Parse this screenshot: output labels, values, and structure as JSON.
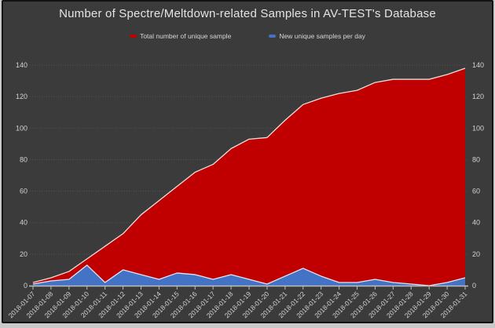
{
  "title": "Number of Spectre/Meltdown-related Samples in AV-TEST's Database",
  "legend": [
    {
      "label": "Total number of unique sample",
      "color": "#c00000"
    },
    {
      "label": "New unique samples per day",
      "color": "#4472c4"
    }
  ],
  "chart_data": {
    "type": "area",
    "title": "Number of Spectre/Meltdown-related Samples in AV-TEST's Database",
    "xlabel": "",
    "ylabel": "",
    "x": [
      "2018-01-07",
      "2018-01-08",
      "2018-01-09",
      "2018-01-10",
      "2018-01-11",
      "2018-01-12",
      "2018-01-13",
      "2018-01-14",
      "2018-01-15",
      "2018-01-16",
      "2018-01-17",
      "2018-01-18",
      "2018-01-19",
      "2018-01-20",
      "2018-01-21",
      "2018-01-22",
      "2018-01-23",
      "2018-01-24",
      "2018-01-25",
      "2018-01-26",
      "2018-01-27",
      "2018-01-28",
      "2018-01-29",
      "2018-01-30",
      "2018-01-31"
    ],
    "series": [
      {
        "name": "Total number of unique sample",
        "color": "#c00000",
        "values": [
          2,
          5,
          9,
          17,
          25,
          33,
          45,
          54,
          63,
          72,
          77,
          87,
          93,
          94,
          105,
          115,
          119,
          122,
          124,
          129,
          131,
          131,
          131,
          134,
          138
        ]
      },
      {
        "name": "New unique samples per day",
        "color": "#4472c4",
        "values": [
          1,
          3,
          4,
          13,
          2,
          10,
          7,
          4,
          8,
          7,
          4,
          7,
          4,
          1,
          6,
          11,
          6,
          2,
          2,
          4,
          2,
          1,
          0,
          2,
          5
        ]
      }
    ],
    "ylim": [
      0,
      140
    ],
    "yticks": [
      0,
      20,
      40,
      60,
      80,
      100,
      120,
      140
    ],
    "grid": true,
    "dual_y_axis": true,
    "legend_position": "top",
    "colors": {
      "background": "#3b3b3b",
      "grid": "#535353",
      "axis": "#bdbdbd",
      "tick_text": "#d2d2d2",
      "edge_total": "#eddedd",
      "edge_new": "#dfe6f2"
    }
  }
}
